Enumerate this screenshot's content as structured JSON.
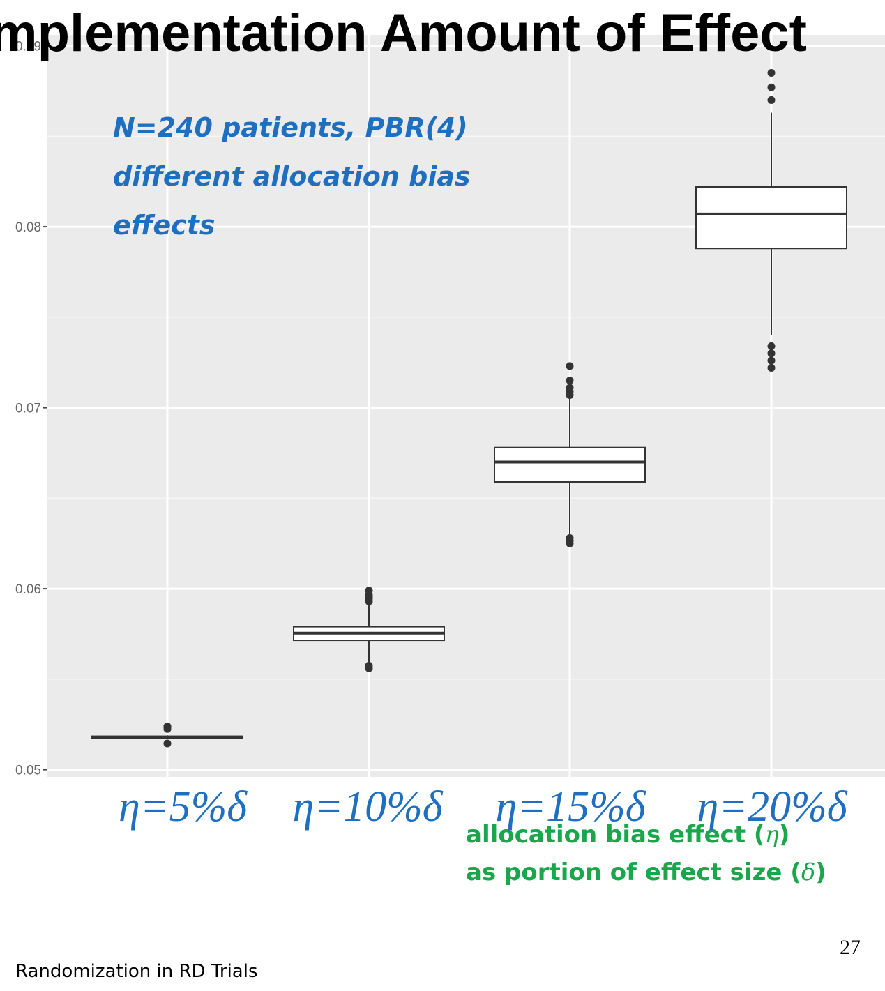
{
  "slide": {
    "title": "mplementation Amount of Effect",
    "note_lines": [
      "N=240 patients, PBR(4)",
      "different allocation bias",
      "effects"
    ],
    "legend_line1": "allocation bias effect (",
    "legend_sym1": "η",
    "legend_end1": ")",
    "legend_line2": "as portion of effect size (",
    "legend_sym2": "δ",
    "legend_end2": ")",
    "footer": "Randomization in RD Trials",
    "page_number": "27",
    "colors": {
      "note": "#1f6fc1",
      "legend": "#1aa64a",
      "accent": "#ee1111"
    }
  },
  "chart_data": {
    "type": "boxplot",
    "categories": [
      "η=5%δ",
      "η=10%δ",
      "η=15%δ",
      "η=20%δ"
    ],
    "y_ticks": [
      0.05,
      0.06,
      0.07,
      0.08,
      0.09
    ],
    "y_tick_labels": [
      "0.05",
      "0.06",
      "0.07",
      "0.08",
      "0.09"
    ],
    "ylim": [
      0.0496,
      0.0906
    ],
    "grid": true,
    "boxes": [
      {
        "q1": 0.05175,
        "median": 0.0518,
        "q3": 0.05185,
        "whisker_low": 0.0517,
        "whisker_high": 0.0519,
        "outliers": [
          0.05145,
          0.05225,
          0.05235,
          0.0524
        ]
      },
      {
        "q1": 0.05715,
        "median": 0.05755,
        "q3": 0.0579,
        "whisker_low": 0.0557,
        "whisker_high": 0.0592,
        "outliers": [
          0.0556,
          0.05575,
          0.0593,
          0.05945,
          0.05955,
          0.05965,
          0.0599
        ]
      },
      {
        "q1": 0.0659,
        "median": 0.067,
        "q3": 0.0678,
        "whisker_low": 0.063,
        "whisker_high": 0.0706,
        "outliers": [
          0.0625,
          0.06265,
          0.0628,
          0.0707,
          0.0709,
          0.0711,
          0.0715,
          0.0723
        ]
      },
      {
        "q1": 0.0788,
        "median": 0.0807,
        "q3": 0.0822,
        "whisker_low": 0.074,
        "whisker_high": 0.0863,
        "outliers": [
          0.0722,
          0.0726,
          0.073,
          0.0734,
          0.087,
          0.0877,
          0.0885
        ]
      }
    ]
  }
}
